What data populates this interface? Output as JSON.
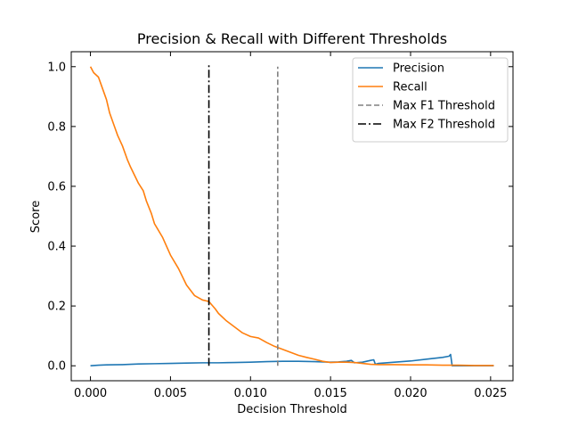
{
  "chart_data": {
    "type": "line",
    "title": "Precision & Recall with Different Thresholds",
    "xlabel": "Decision Threshold",
    "ylabel": "Score",
    "xlim": [
      -0.0012,
      0.0264
    ],
    "ylim": [
      -0.05,
      1.05
    ],
    "xticks": [
      0.0,
      0.005,
      0.01,
      0.015,
      0.02,
      0.025
    ],
    "xtick_labels": [
      "0.000",
      "0.005",
      "0.010",
      "0.015",
      "0.020",
      "0.025"
    ],
    "yticks": [
      0.0,
      0.2,
      0.4,
      0.6,
      0.8,
      1.0
    ],
    "ytick_labels": [
      "0.0",
      "0.2",
      "0.4",
      "0.6",
      "0.8",
      "1.0"
    ],
    "grid": false,
    "legend_position": "top-right",
    "series": [
      {
        "name": "Precision",
        "color": "#1f77b4",
        "style": "solid",
        "x": [
          0.0,
          0.0005,
          0.001,
          0.002,
          0.003,
          0.004,
          0.005,
          0.006,
          0.007,
          0.008,
          0.009,
          0.01,
          0.011,
          0.012,
          0.013,
          0.014,
          0.015,
          0.0155,
          0.016,
          0.0163,
          0.0165,
          0.017,
          0.0175,
          0.0177,
          0.0178,
          0.018,
          0.019,
          0.02,
          0.021,
          0.022,
          0.0224,
          0.0225,
          0.0226,
          0.023,
          0.024,
          0.025,
          0.0252
        ],
        "y": [
          0.0,
          0.002,
          0.003,
          0.004,
          0.006,
          0.007,
          0.008,
          0.009,
          0.01,
          0.01,
          0.011,
          0.012,
          0.014,
          0.015,
          0.015,
          0.014,
          0.012,
          0.013,
          0.015,
          0.018,
          0.01,
          0.012,
          0.018,
          0.02,
          0.005,
          0.008,
          0.012,
          0.016,
          0.022,
          0.028,
          0.032,
          0.038,
          0.0,
          0.0,
          0.0,
          0.0,
          0.0
        ]
      },
      {
        "name": "Recall",
        "color": "#ff7f0e",
        "style": "solid",
        "x": [
          0.0,
          0.0002,
          0.0005,
          0.0007,
          0.001,
          0.0012,
          0.0015,
          0.0017,
          0.002,
          0.0023,
          0.0025,
          0.003,
          0.0033,
          0.0035,
          0.0038,
          0.004,
          0.0045,
          0.005,
          0.0055,
          0.006,
          0.0065,
          0.007,
          0.0074,
          0.0078,
          0.008,
          0.0085,
          0.009,
          0.0095,
          0.01,
          0.0105,
          0.011,
          0.0115,
          0.012,
          0.0125,
          0.013,
          0.0135,
          0.014,
          0.0145,
          0.015,
          0.0155,
          0.016,
          0.0165,
          0.017,
          0.0175,
          0.018,
          0.019,
          0.02,
          0.021,
          0.022,
          0.0225,
          0.023,
          0.024,
          0.025,
          0.0252
        ],
        "y": [
          1.0,
          0.98,
          0.965,
          0.935,
          0.89,
          0.845,
          0.8,
          0.77,
          0.735,
          0.69,
          0.665,
          0.61,
          0.585,
          0.55,
          0.51,
          0.475,
          0.43,
          0.37,
          0.325,
          0.27,
          0.235,
          0.22,
          0.215,
          0.19,
          0.175,
          0.15,
          0.13,
          0.11,
          0.098,
          0.093,
          0.078,
          0.065,
          0.055,
          0.045,
          0.035,
          0.028,
          0.022,
          0.015,
          0.011,
          0.012,
          0.012,
          0.011,
          0.008,
          0.005,
          0.004,
          0.004,
          0.003,
          0.003,
          0.002,
          0.002,
          0.002,
          0.001,
          0.001,
          0.001
        ]
      },
      {
        "name": "Max F1 Threshold",
        "color": "#808080",
        "style": "dashed",
        "x": [
          0.0117,
          0.0117
        ],
        "y": [
          0.0,
          1.0
        ]
      },
      {
        "name": "Max F2 Threshold",
        "color": "#000000",
        "style": "dashdot",
        "x": [
          0.0074,
          0.0074
        ],
        "y": [
          0.0,
          1.01
        ]
      }
    ]
  }
}
